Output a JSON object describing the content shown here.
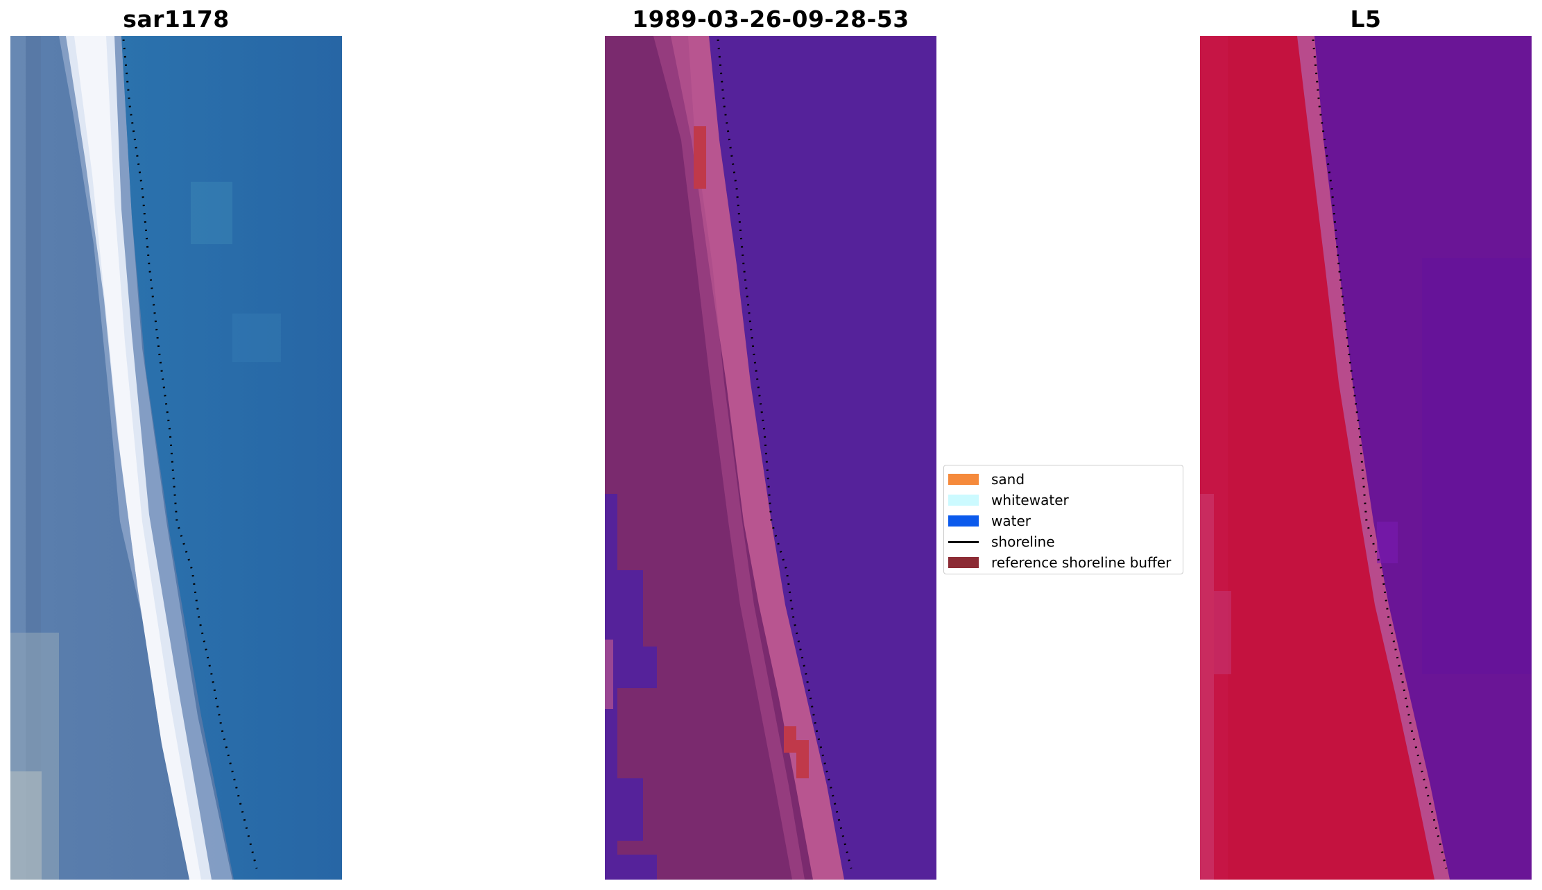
{
  "panels": [
    {
      "title": "sar1178",
      "palette": "rgb"
    },
    {
      "title": "1989-03-26-09-28-53",
      "palette": "classification"
    },
    {
      "title": "L5",
      "palette": "index"
    }
  ],
  "legend": {
    "items": [
      {
        "label": "sand",
        "color": "#f58a3c",
        "kind": "patch"
      },
      {
        "label": "whitewater",
        "color": "#ccfaff",
        "kind": "patch"
      },
      {
        "label": "water",
        "color": "#0b5aec",
        "kind": "patch"
      },
      {
        "label": "shoreline",
        "color": "#000000",
        "kind": "line"
      },
      {
        "label": "reference shoreline buffer",
        "color": "#8c2b34",
        "kind": "patch"
      }
    ]
  },
  "colors": {
    "water_blue": "#2a6fab",
    "foam_white": "#f2f4fa",
    "land_slate": "#5a7aa8",
    "class_water_purple": "#55229a",
    "class_sand_pink": "#b85590",
    "class_land_plum": "#7a2a6e",
    "class_buffer_red": "#c0394a",
    "index_red": "#c4123f",
    "index_purple": "#6a1596"
  }
}
